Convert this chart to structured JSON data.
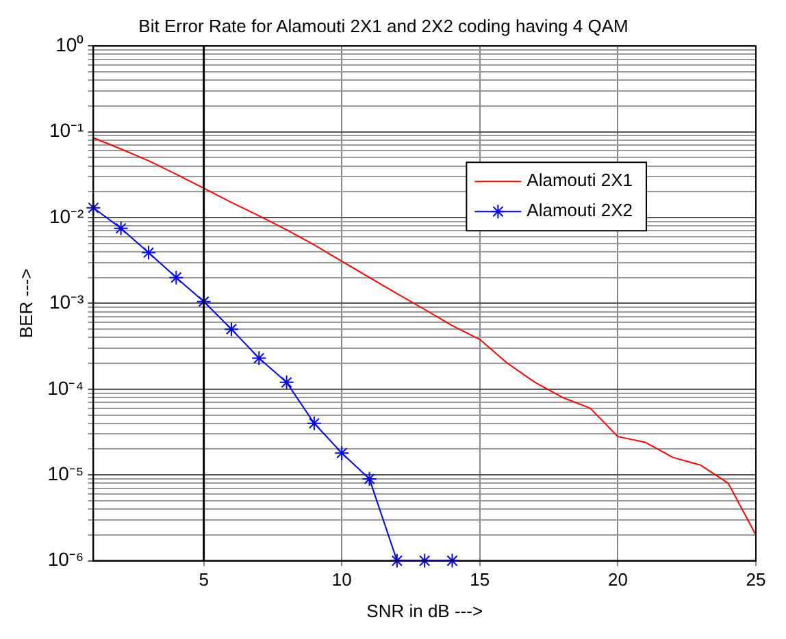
{
  "chart_data": {
    "type": "line",
    "title": "Bit Error Rate for Alamouti 2X1 and 2X2 coding having 4 QAM",
    "xlabel": "SNR in dB --->",
    "ylabel": "BER --->",
    "x": [
      1,
      2,
      3,
      4,
      5,
      6,
      7,
      8,
      9,
      10,
      11,
      12,
      13,
      14,
      15,
      16,
      17,
      18,
      19,
      20,
      21,
      22,
      23,
      24,
      25
    ],
    "series": [
      {
        "name": "Alamouti 2X1",
        "color": "#ff0000",
        "marker": "none",
        "values": [
          0.085,
          0.063,
          0.046,
          0.032,
          0.022,
          0.015,
          0.0105,
          0.0072,
          0.0048,
          0.0031,
          0.002,
          0.0013,
          0.00085,
          0.00055,
          0.00038,
          0.0002,
          0.00012,
          8e-05,
          6e-05,
          2.8e-05,
          2.4e-05,
          1.6e-05,
          1.3e-05,
          8e-06,
          2e-06
        ]
      },
      {
        "name": "Alamouti 2X2",
        "color": "#0000ff",
        "marker": "cross",
        "values": [
          0.013,
          0.0075,
          0.0039,
          0.002,
          0.00105,
          0.0005,
          0.00023,
          0.00012,
          4e-05,
          1.8e-05,
          9e-06,
          1e-06,
          1e-06,
          1e-06,
          null,
          null,
          null,
          null,
          null,
          null,
          null,
          null,
          null,
          null,
          null
        ]
      }
    ],
    "log": "y",
    "xlim": [
      1,
      25
    ],
    "xticks": [
      5,
      10,
      15,
      20,
      25
    ],
    "ylim": [
      1e-06,
      1
    ],
    "yticks": [
      {
        "value": 1e-06,
        "label": "10⁻⁶"
      },
      {
        "value": 2e-06,
        "label": null
      },
      {
        "value": 3e-06,
        "label": null
      },
      {
        "value": 4e-06,
        "label": null
      },
      {
        "value": 5e-06,
        "label": null
      },
      {
        "value": 6e-06,
        "label": null
      },
      {
        "value": 7e-06,
        "label": null
      },
      {
        "value": 8e-06,
        "label": null
      },
      {
        "value": 9e-06,
        "label": null
      },
      {
        "value": 1e-05,
        "label": "10⁻⁵"
      },
      {
        "value": 2e-05,
        "label": null
      },
      {
        "value": 3e-05,
        "label": null
      },
      {
        "value": 4e-05,
        "label": null
      },
      {
        "value": 5e-05,
        "label": null
      },
      {
        "value": 6e-05,
        "label": null
      },
      {
        "value": 7e-05,
        "label": null
      },
      {
        "value": 8e-05,
        "label": null
      },
      {
        "value": 9e-05,
        "label": null
      },
      {
        "value": 0.0001,
        "label": "10⁻⁴"
      },
      {
        "value": 0.0002,
        "label": null
      },
      {
        "value": 0.0003,
        "label": null
      },
      {
        "value": 0.0004,
        "label": null
      },
      {
        "value": 0.0005,
        "label": null
      },
      {
        "value": 0.0006,
        "label": null
      },
      {
        "value": 0.0007,
        "label": null
      },
      {
        "value": 0.0008,
        "label": null
      },
      {
        "value": 0.0009,
        "label": null
      },
      {
        "value": 0.001,
        "label": "10⁻³"
      },
      {
        "value": 0.002,
        "label": null
      },
      {
        "value": 0.003,
        "label": null
      },
      {
        "value": 0.004,
        "label": null
      },
      {
        "value": 0.005,
        "label": null
      },
      {
        "value": 0.006,
        "label": null
      },
      {
        "value": 0.007,
        "label": null
      },
      {
        "value": 0.008,
        "label": null
      },
      {
        "value": 0.009,
        "label": null
      },
      {
        "value": 0.01,
        "label": "10⁻²"
      },
      {
        "value": 0.02,
        "label": null
      },
      {
        "value": 0.03,
        "label": null
      },
      {
        "value": 0.04,
        "label": null
      },
      {
        "value": 0.05,
        "label": null
      },
      {
        "value": 0.06,
        "label": null
      },
      {
        "value": 0.07,
        "label": null
      },
      {
        "value": 0.08,
        "label": null
      },
      {
        "value": 0.09,
        "label": null
      },
      {
        "value": 0.1,
        "label": "10⁻¹"
      },
      {
        "value": 0.2,
        "label": null
      },
      {
        "value": 0.3,
        "label": null
      },
      {
        "value": 0.4,
        "label": null
      },
      {
        "value": 0.5,
        "label": null
      },
      {
        "value": 0.6,
        "label": null
      },
      {
        "value": 0.7,
        "label": null
      },
      {
        "value": 0.8,
        "label": null
      },
      {
        "value": 0.9,
        "label": null
      },
      {
        "value": 1,
        "label": "10⁰"
      }
    ],
    "grid": true,
    "legend": "top right",
    "line_style": "solid",
    "ref_lines": [
      {
        "axis": "x",
        "value": 5,
        "color": "#000000"
      }
    ]
  }
}
